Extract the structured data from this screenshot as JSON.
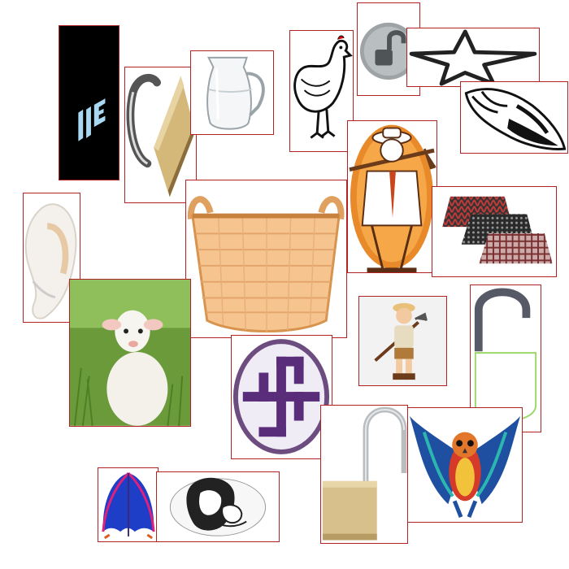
{
  "canvas": {
    "background": "#ffffff",
    "frame_color": "#b22222"
  },
  "tiles": [
    {
      "id": "logo",
      "icon": "black-logo-tile"
    },
    {
      "id": "hinge",
      "icon": "hinge-magnet"
    },
    {
      "id": "pitcher",
      "icon": "glass-pitcher"
    },
    {
      "id": "hen",
      "icon": "hen-drawing"
    },
    {
      "id": "lock-silver",
      "icon": "silver-open-padlock"
    },
    {
      "id": "star",
      "icon": "star-outline"
    },
    {
      "id": "conch",
      "icon": "conch-shell"
    },
    {
      "id": "farmer",
      "icon": "farmer-with-hoe"
    },
    {
      "id": "hats",
      "icon": "patterned-hats"
    },
    {
      "id": "shell-white",
      "icon": "white-shell"
    },
    {
      "id": "basket",
      "icon": "wicker-basket"
    },
    {
      "id": "lamb",
      "icon": "lamb-photo"
    },
    {
      "id": "swastika",
      "icon": "swastika-symbol"
    },
    {
      "id": "boy",
      "icon": "boy-with-hoe"
    },
    {
      "id": "lock-outline",
      "icon": "outline-padlock"
    },
    {
      "id": "lock-brass",
      "icon": "brass-open-padlock"
    },
    {
      "id": "owl",
      "icon": "colorful-owl"
    },
    {
      "id": "umbrella",
      "icon": "umbrella"
    },
    {
      "id": "mother",
      "icon": "mother-and-child"
    }
  ]
}
